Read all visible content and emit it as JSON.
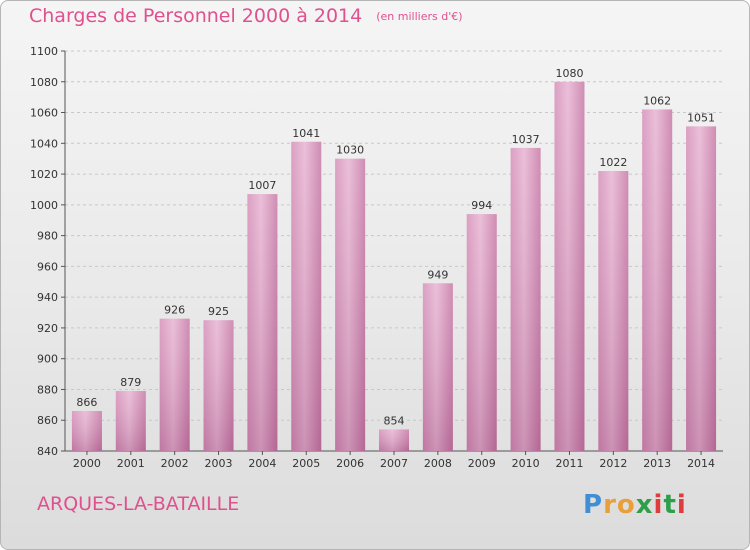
{
  "header": {
    "title": "Charges de Personnel 2000 à 2014",
    "subtitle": "(en milliers d'€)"
  },
  "footer": {
    "commune": "ARQUES-LA-BATAILLE",
    "logo_letters": [
      "P",
      "r",
      "o",
      "x",
      "i",
      "t",
      "i"
    ]
  },
  "colors": {
    "title": "#e0508e",
    "bar": "#c77da8",
    "bar_light": "#e4aed0",
    "logo": [
      "#3e8fd6",
      "#e8a13a",
      "#e8a13a",
      "#2e9e4a",
      "#e03c3c",
      "#2e9e4a",
      "#e03c3c"
    ]
  },
  "chart_data": {
    "type": "bar",
    "title": "Charges de Personnel 2000 à 2014",
    "subtitle": "(en milliers d'€)",
    "categories": [
      "2000",
      "2001",
      "2002",
      "2003",
      "2004",
      "2005",
      "2006",
      "2007",
      "2008",
      "2009",
      "2010",
      "2011",
      "2012",
      "2013",
      "2014"
    ],
    "values": [
      866,
      879,
      926,
      925,
      1007,
      1041,
      1030,
      854,
      949,
      994,
      1037,
      1080,
      1022,
      1062,
      1051
    ],
    "ylim": [
      840,
      1100
    ],
    "yticks": [
      840,
      860,
      880,
      900,
      920,
      940,
      960,
      980,
      1000,
      1020,
      1040,
      1060,
      1080,
      1100
    ],
    "grid": true,
    "xlabel": "",
    "ylabel": ""
  }
}
